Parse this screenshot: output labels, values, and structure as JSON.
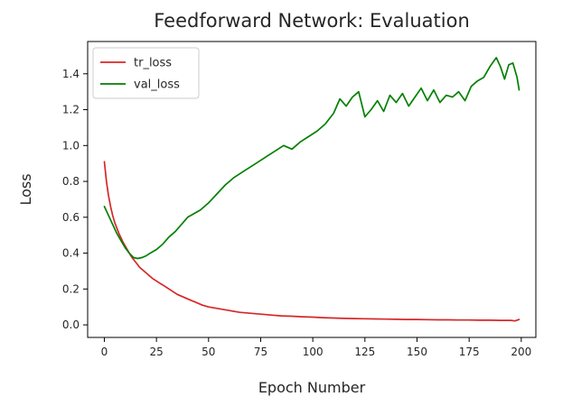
{
  "chart_data": {
    "type": "line",
    "title": "Feedforward Network: Evaluation",
    "xlabel": "Epoch Number",
    "ylabel": "Loss",
    "xlim": [
      -8,
      207
    ],
    "ylim": [
      -0.07,
      1.58
    ],
    "xticks": [
      0,
      25,
      50,
      75,
      100,
      125,
      150,
      175,
      200
    ],
    "yticks": [
      0.0,
      0.2,
      0.4,
      0.6,
      0.8,
      1.0,
      1.2,
      1.4
    ],
    "ytick_labels": [
      "0.0",
      "0.2",
      "0.4",
      "0.6",
      "0.8",
      "1.0",
      "1.2",
      "1.4"
    ],
    "grid": false,
    "legend_position": "top-left",
    "series": [
      {
        "name": "tr_loss",
        "color": "#d62728",
        "points": [
          [
            0,
            0.91
          ],
          [
            1,
            0.8
          ],
          [
            2,
            0.72
          ],
          [
            3,
            0.66
          ],
          [
            4,
            0.61
          ],
          [
            5,
            0.57
          ],
          [
            7,
            0.51
          ],
          [
            9,
            0.46
          ],
          [
            11,
            0.42
          ],
          [
            13,
            0.38
          ],
          [
            15,
            0.35
          ],
          [
            17,
            0.32
          ],
          [
            19,
            0.3
          ],
          [
            21,
            0.28
          ],
          [
            23,
            0.26
          ],
          [
            25,
            0.245
          ],
          [
            27,
            0.23
          ],
          [
            29,
            0.215
          ],
          [
            31,
            0.2
          ],
          [
            33,
            0.185
          ],
          [
            35,
            0.17
          ],
          [
            38,
            0.155
          ],
          [
            41,
            0.14
          ],
          [
            44,
            0.125
          ],
          [
            47,
            0.11
          ],
          [
            50,
            0.1
          ],
          [
            55,
            0.09
          ],
          [
            60,
            0.08
          ],
          [
            65,
            0.07
          ],
          [
            70,
            0.065
          ],
          [
            75,
            0.06
          ],
          [
            80,
            0.055
          ],
          [
            85,
            0.05
          ],
          [
            90,
            0.048
          ],
          [
            95,
            0.045
          ],
          [
            100,
            0.043
          ],
          [
            105,
            0.04
          ],
          [
            110,
            0.038
          ],
          [
            115,
            0.036
          ],
          [
            120,
            0.035
          ],
          [
            125,
            0.034
          ],
          [
            130,
            0.033
          ],
          [
            135,
            0.032
          ],
          [
            140,
            0.031
          ],
          [
            145,
            0.03
          ],
          [
            150,
            0.03
          ],
          [
            155,
            0.029
          ],
          [
            160,
            0.028
          ],
          [
            165,
            0.028
          ],
          [
            170,
            0.027
          ],
          [
            175,
            0.027
          ],
          [
            180,
            0.026
          ],
          [
            185,
            0.026
          ],
          [
            190,
            0.025
          ],
          [
            195,
            0.025
          ],
          [
            197,
            0.022
          ],
          [
            199,
            0.03
          ]
        ]
      },
      {
        "name": "val_loss",
        "color": "#008000",
        "points": [
          [
            0,
            0.66
          ],
          [
            2,
            0.61
          ],
          [
            4,
            0.56
          ],
          [
            6,
            0.51
          ],
          [
            8,
            0.47
          ],
          [
            10,
            0.43
          ],
          [
            12,
            0.4
          ],
          [
            14,
            0.375
          ],
          [
            16,
            0.37
          ],
          [
            18,
            0.375
          ],
          [
            20,
            0.385
          ],
          [
            22,
            0.4
          ],
          [
            25,
            0.42
          ],
          [
            28,
            0.45
          ],
          [
            31,
            0.49
          ],
          [
            34,
            0.52
          ],
          [
            37,
            0.56
          ],
          [
            40,
            0.6
          ],
          [
            43,
            0.62
          ],
          [
            46,
            0.64
          ],
          [
            50,
            0.68
          ],
          [
            54,
            0.73
          ],
          [
            58,
            0.78
          ],
          [
            62,
            0.82
          ],
          [
            66,
            0.85
          ],
          [
            70,
            0.88
          ],
          [
            74,
            0.91
          ],
          [
            78,
            0.94
          ],
          [
            82,
            0.97
          ],
          [
            86,
            1.0
          ],
          [
            90,
            0.98
          ],
          [
            94,
            1.02
          ],
          [
            98,
            1.05
          ],
          [
            102,
            1.08
          ],
          [
            106,
            1.12
          ],
          [
            110,
            1.18
          ],
          [
            113,
            1.26
          ],
          [
            116,
            1.22
          ],
          [
            119,
            1.27
          ],
          [
            122,
            1.3
          ],
          [
            125,
            1.16
          ],
          [
            128,
            1.2
          ],
          [
            131,
            1.25
          ],
          [
            134,
            1.19
          ],
          [
            137,
            1.28
          ],
          [
            140,
            1.24
          ],
          [
            143,
            1.29
          ],
          [
            146,
            1.22
          ],
          [
            149,
            1.27
          ],
          [
            152,
            1.32
          ],
          [
            155,
            1.25
          ],
          [
            158,
            1.31
          ],
          [
            161,
            1.24
          ],
          [
            164,
            1.28
          ],
          [
            167,
            1.27
          ],
          [
            170,
            1.3
          ],
          [
            173,
            1.25
          ],
          [
            176,
            1.33
          ],
          [
            179,
            1.36
          ],
          [
            182,
            1.38
          ],
          [
            185,
            1.44
          ],
          [
            188,
            1.49
          ],
          [
            190,
            1.44
          ],
          [
            192,
            1.37
          ],
          [
            194,
            1.45
          ],
          [
            196,
            1.46
          ],
          [
            198,
            1.38
          ],
          [
            199,
            1.31
          ]
        ]
      }
    ]
  }
}
